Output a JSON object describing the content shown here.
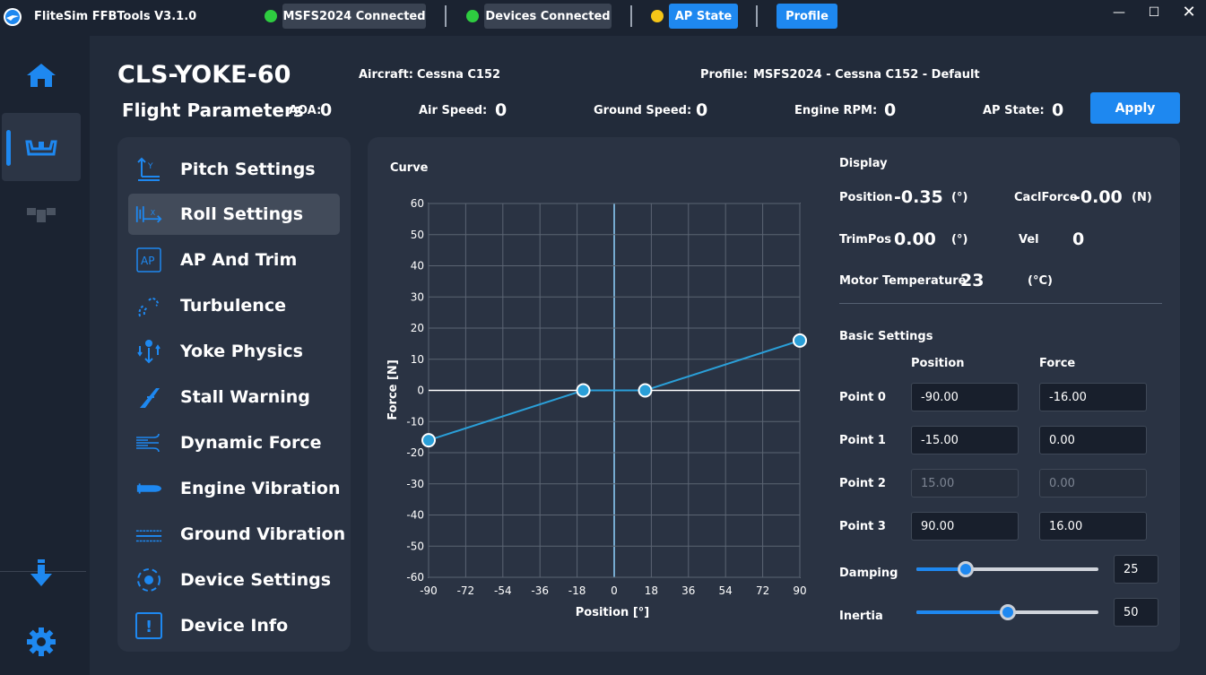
{
  "app": {
    "title": "FliteSim FFBTools V3.1.0",
    "msfs_status": "MSFS2024 Connected",
    "devices_status": "Devices Connected",
    "ap_state_button": "AP State",
    "profile_button": "Profile",
    "colors": {
      "accent": "#1e88f0",
      "connected": "#2ecc40",
      "ap_indicator": "#f5c518"
    }
  },
  "header": {
    "device_name": "CLS-YOKE-60",
    "section_title": "Flight Parameters",
    "aircraft_label": "Aircraft:",
    "aircraft_value": "Cessna C152",
    "profile_label": "Profile:",
    "profile_value": "MSFS2024 - Cessna C152 - Default",
    "aoa_label": "AOA:",
    "aoa_value": "0",
    "airspeed_label": "Air Speed:",
    "airspeed_value": "0",
    "groundspeed_label": "Ground Speed:",
    "groundspeed_value": "0",
    "rpm_label": "Engine RPM:",
    "rpm_value": "0",
    "apstate_label": "AP State:",
    "apstate_value": "0",
    "apply_button": "Apply"
  },
  "menu": {
    "items": [
      {
        "label": "Pitch Settings",
        "icon": "pitch-axis-icon"
      },
      {
        "label": "Roll Settings",
        "icon": "roll-axis-icon",
        "active": true
      },
      {
        "label": "AP And Trim",
        "icon": "ap-icon"
      },
      {
        "label": "Turbulence",
        "icon": "turbulence-icon"
      },
      {
        "label": "Yoke Physics",
        "icon": "yoke-physics-icon"
      },
      {
        "label": "Stall Warning",
        "icon": "stall-warning-icon"
      },
      {
        "label": "Dynamic Force",
        "icon": "wind-icon"
      },
      {
        "label": "Engine Vibration",
        "icon": "engine-icon"
      },
      {
        "label": "Ground Vibration",
        "icon": "ground-vibration-icon"
      },
      {
        "label": "Device Settings",
        "icon": "device-settings-icon"
      },
      {
        "label": "Device Info",
        "icon": "info-icon"
      }
    ],
    "ap_icon_text": "AP",
    "info_icon_text": "!"
  },
  "chart_data": {
    "type": "line",
    "title": "Curve",
    "xlabel": "Position [°]",
    "ylabel": "Force [N]",
    "xlim": [
      -90,
      90
    ],
    "ylim": [
      -60,
      60
    ],
    "x_ticks": [
      -90,
      -72,
      -54,
      -36,
      -18,
      0,
      18,
      36,
      54,
      72,
      90
    ],
    "y_ticks": [
      60,
      50,
      40,
      30,
      20,
      10,
      0,
      -10,
      -20,
      -30,
      -40,
      -50,
      -60
    ],
    "grid": true,
    "series": [
      {
        "x": [
          -90,
          -15,
          15,
          90
        ],
        "y": [
          -16,
          0,
          0,
          16
        ],
        "color": "#2a9fd8"
      }
    ]
  },
  "display": {
    "title": "Display",
    "position_label": "Position",
    "position_value": "-0.35",
    "position_unit": "(°)",
    "caclforce_label": "CaclForce",
    "caclforce_value": "-0.00",
    "caclforce_unit": "(N)",
    "trimpos_label": "TrimPos",
    "trimpos_value": "0.00",
    "trimpos_unit": "(°)",
    "vel_label": "Vel",
    "vel_value": "0",
    "motor_temp_label": "Motor Temperature",
    "motor_temp_value": "23",
    "motor_temp_unit": "(°C)"
  },
  "basic": {
    "title": "Basic Settings",
    "position_header": "Position",
    "force_header": "Force",
    "points": [
      {
        "label": "Point 0",
        "position": "-90.00",
        "force": "-16.00"
      },
      {
        "label": "Point 1",
        "position": "-15.00",
        "force": "0.00"
      },
      {
        "label": "Point 2",
        "position": "15.00",
        "force": "0.00",
        "disabled": true
      },
      {
        "label": "Point 3",
        "position": "90.00",
        "force": "16.00"
      }
    ],
    "damping_label": "Damping",
    "damping_value": "25",
    "damping_fraction": 0.27,
    "inertia_label": "Inertia",
    "inertia_value": "50",
    "inertia_fraction": 0.5
  }
}
